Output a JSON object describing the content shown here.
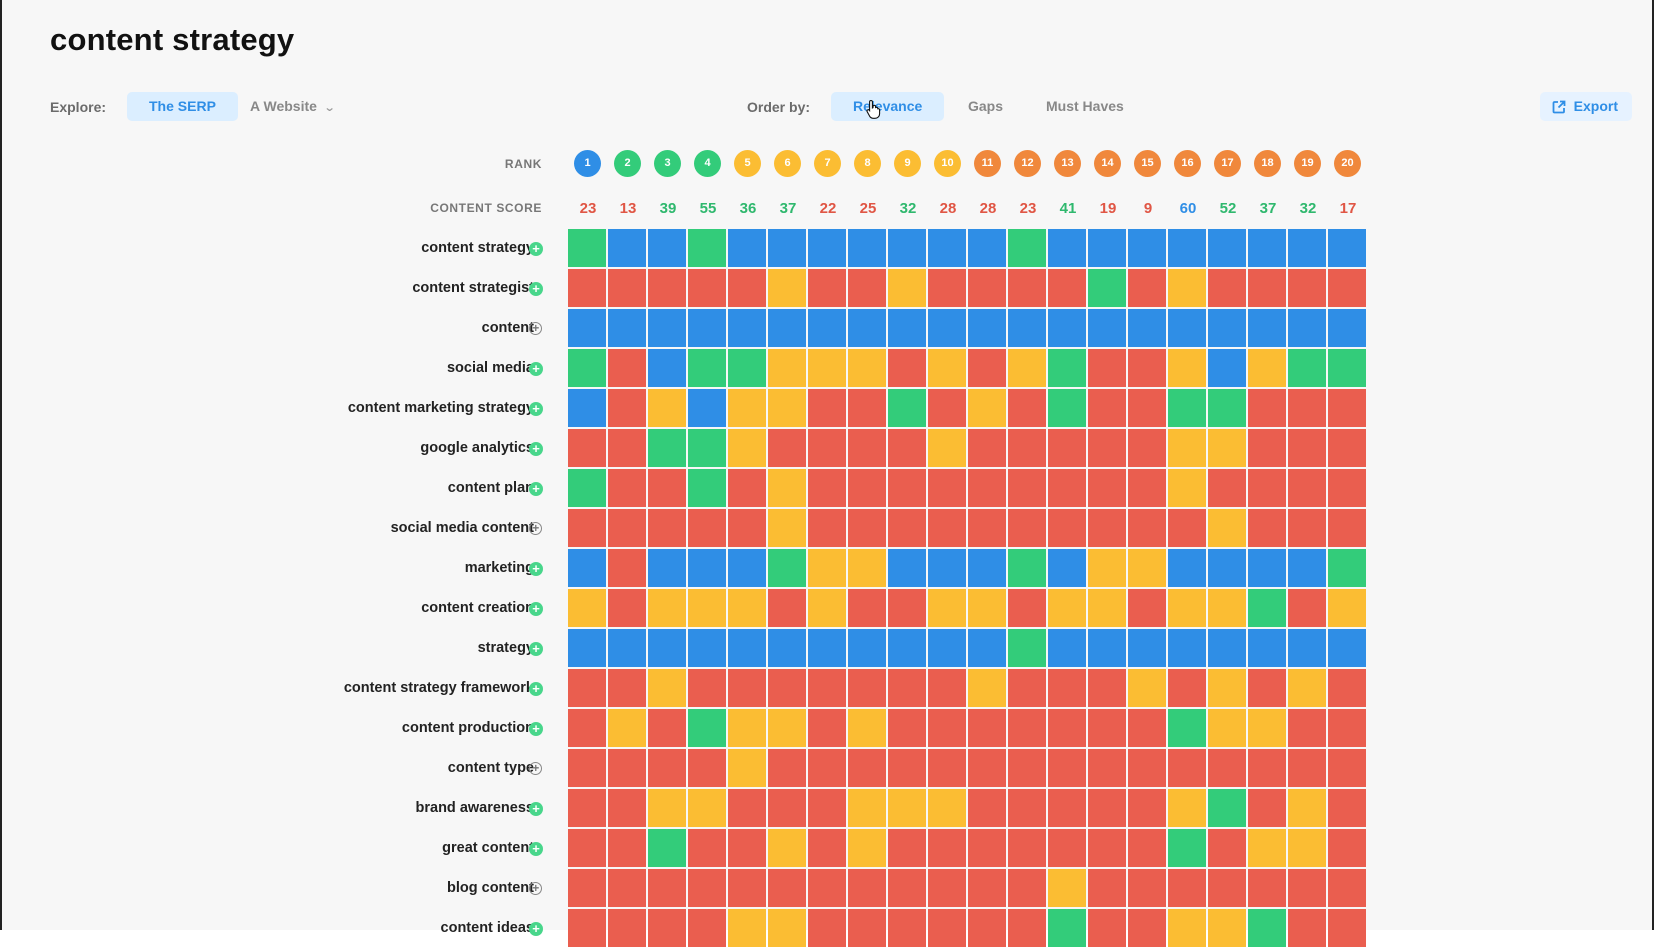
{
  "page": {
    "title": "content strategy"
  },
  "toolbar": {
    "explore_label": "Explore:",
    "explore_options": [
      "The SERP",
      "A Website"
    ],
    "explore_active": 0,
    "order_label": "Order by:",
    "order_options": [
      "Relevance",
      "Gaps",
      "Must Haves"
    ],
    "order_active": 0,
    "export_label": "Export"
  },
  "headers": {
    "rank": "RANK",
    "content_score": "CONTENT SCORE"
  },
  "colors": {
    "blue": "#2f8ee6",
    "green": "#33cc7a",
    "yellow": "#fbbd33",
    "orange": "#f0883c",
    "red": "#ea5e4f",
    "score_red": "#e05645",
    "score_green": "#2fb86e",
    "score_blue": "#2f8ee6"
  },
  "ranks": [
    {
      "n": "1",
      "color": "blue"
    },
    {
      "n": "2",
      "color": "green"
    },
    {
      "n": "3",
      "color": "green"
    },
    {
      "n": "4",
      "color": "green"
    },
    {
      "n": "5",
      "color": "yellow"
    },
    {
      "n": "6",
      "color": "yellow"
    },
    {
      "n": "7",
      "color": "yellow"
    },
    {
      "n": "8",
      "color": "yellow"
    },
    {
      "n": "9",
      "color": "yellow"
    },
    {
      "n": "10",
      "color": "yellow"
    },
    {
      "n": "11",
      "color": "orange"
    },
    {
      "n": "12",
      "color": "orange"
    },
    {
      "n": "13",
      "color": "orange"
    },
    {
      "n": "14",
      "color": "orange"
    },
    {
      "n": "15",
      "color": "orange"
    },
    {
      "n": "16",
      "color": "orange"
    },
    {
      "n": "17",
      "color": "orange"
    },
    {
      "n": "18",
      "color": "orange"
    },
    {
      "n": "19",
      "color": "orange"
    },
    {
      "n": "20",
      "color": "orange"
    }
  ],
  "scores": [
    {
      "v": "23",
      "color": "score_red"
    },
    {
      "v": "13",
      "color": "score_red"
    },
    {
      "v": "39",
      "color": "score_green"
    },
    {
      "v": "55",
      "color": "score_green"
    },
    {
      "v": "36",
      "color": "score_green"
    },
    {
      "v": "37",
      "color": "score_green"
    },
    {
      "v": "22",
      "color": "score_red"
    },
    {
      "v": "25",
      "color": "score_red"
    },
    {
      "v": "32",
      "color": "score_green"
    },
    {
      "v": "28",
      "color": "score_red"
    },
    {
      "v": "28",
      "color": "score_red"
    },
    {
      "v": "23",
      "color": "score_red"
    },
    {
      "v": "41",
      "color": "score_green"
    },
    {
      "v": "19",
      "color": "score_red"
    },
    {
      "v": "9",
      "color": "score_red"
    },
    {
      "v": "60",
      "color": "score_blue"
    },
    {
      "v": "52",
      "color": "score_green"
    },
    {
      "v": "37",
      "color": "score_green"
    },
    {
      "v": "32",
      "color": "score_green"
    },
    {
      "v": "17",
      "color": "score_red"
    }
  ],
  "legend_codes": {
    "B": "blue",
    "G": "green",
    "Y": "yellow",
    "R": "red"
  },
  "rows": [
    {
      "term": "content strategy",
      "added": true,
      "cells": "GBBGBBBBBBBGBBBBBBBB"
    },
    {
      "term": "content strategist",
      "added": true,
      "cells": "RRRRRYRRYRRRRGRYRRRR"
    },
    {
      "term": "content",
      "added": false,
      "cells": "BBBBBBBBBBBBBBBBBBBB"
    },
    {
      "term": "social media",
      "added": true,
      "cells": "GRBGGYYYRYRYGRRYBYGG"
    },
    {
      "term": "content marketing strategy",
      "added": true,
      "cells": "BRYBYYRRGRYRGRRGGRRR"
    },
    {
      "term": "google analytics",
      "added": true,
      "cells": "RRGGYRRRRYRRRRRYYRRR"
    },
    {
      "term": "content plan",
      "added": true,
      "cells": "GRRGRYRRRRRRRRRYRRRR"
    },
    {
      "term": "social media content",
      "added": false,
      "cells": "RRRRRYRRRRRRRRRRYRRR"
    },
    {
      "term": "marketing",
      "added": true,
      "cells": "BRBBBGYYBBBGBYYBBBBG"
    },
    {
      "term": "content creation",
      "added": true,
      "cells": "YRYYYRYRRYYRYYRYYGRY"
    },
    {
      "term": "strategy",
      "added": true,
      "cells": "BBBBBBBBBBBGBBBBBBBB"
    },
    {
      "term": "content strategy framework",
      "added": true,
      "cells": "RRYRRRRRRRYRRRYRYRYR"
    },
    {
      "term": "content production",
      "added": true,
      "cells": "RYRGYYRYRRRRRRRGYYRR"
    },
    {
      "term": "content type",
      "added": false,
      "cells": "RRRRYRRRRRRRRRRRRRRR"
    },
    {
      "term": "brand awareness",
      "added": true,
      "cells": "RRYYRRRYYYRRRRRYGRYR"
    },
    {
      "term": "great content",
      "added": true,
      "cells": "RRGRRYRYRRRRRRRGRYYR"
    },
    {
      "term": "blog content",
      "added": false,
      "cells": "RRRRRRRRRRRRYRRRRRRR"
    },
    {
      "term": "content ideas",
      "added": true,
      "cells": "RRRRYYRRRRRRGRRYYGRR"
    }
  ]
}
